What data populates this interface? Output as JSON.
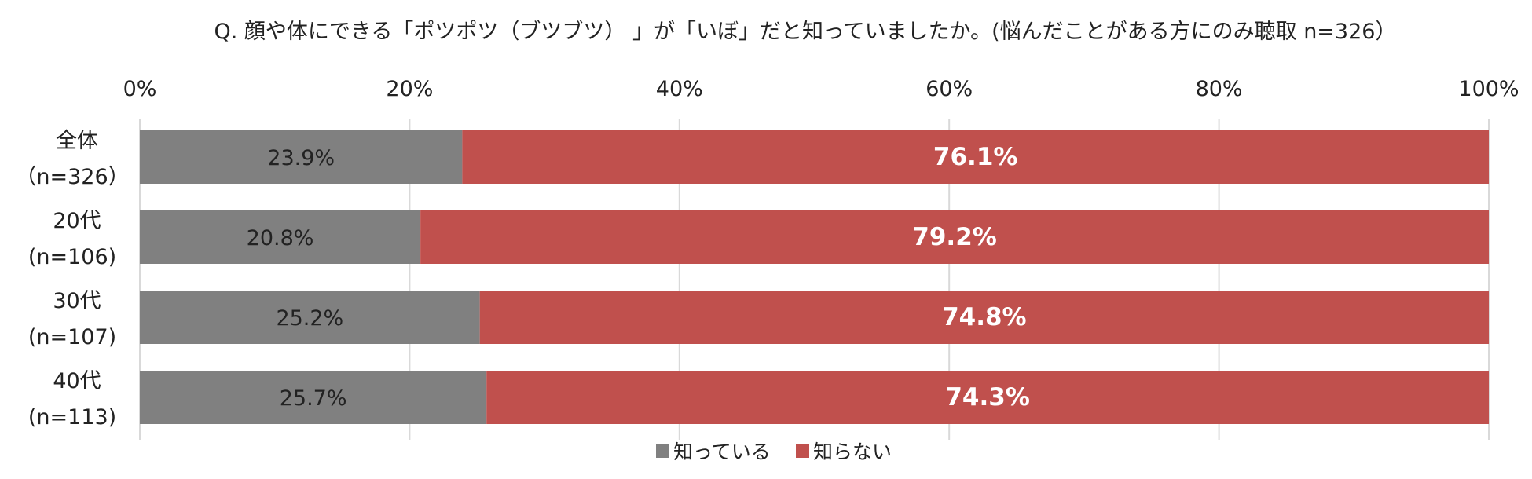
{
  "chart_data": {
    "type": "bar",
    "stacked": true,
    "orientation": "horizontal",
    "title": "Q. 顔や体にできる「ポツポツ（ブツブツ） 」が「いぼ」だと知っていましたか。(悩んだことがある方にのみ聴取 n=326）",
    "categories": [
      {
        "label": "全体",
        "sublabel": "（n=326）"
      },
      {
        "label": "20代",
        "sublabel": "(n=106)"
      },
      {
        "label": "30代",
        "sublabel": "(n=107)"
      },
      {
        "label": "40代",
        "sublabel": "(n=113)"
      }
    ],
    "series": [
      {
        "name": "知っている",
        "color": "#808080",
        "values": [
          23.9,
          20.8,
          25.2,
          25.7
        ],
        "labels": [
          "23.9%",
          "20.8%",
          "25.2%",
          "25.7%"
        ]
      },
      {
        "name": "知らない",
        "color": "#c0504d",
        "values": [
          76.1,
          79.2,
          74.8,
          74.3
        ],
        "labels": [
          "76.1%",
          "79.2%",
          "74.8%",
          "74.3%"
        ]
      }
    ],
    "xlim": [
      0,
      100
    ],
    "xticks": [
      "0%",
      "20%",
      "40%",
      "60%",
      "80%",
      "100%"
    ],
    "grid": true,
    "legend": "bottom"
  }
}
